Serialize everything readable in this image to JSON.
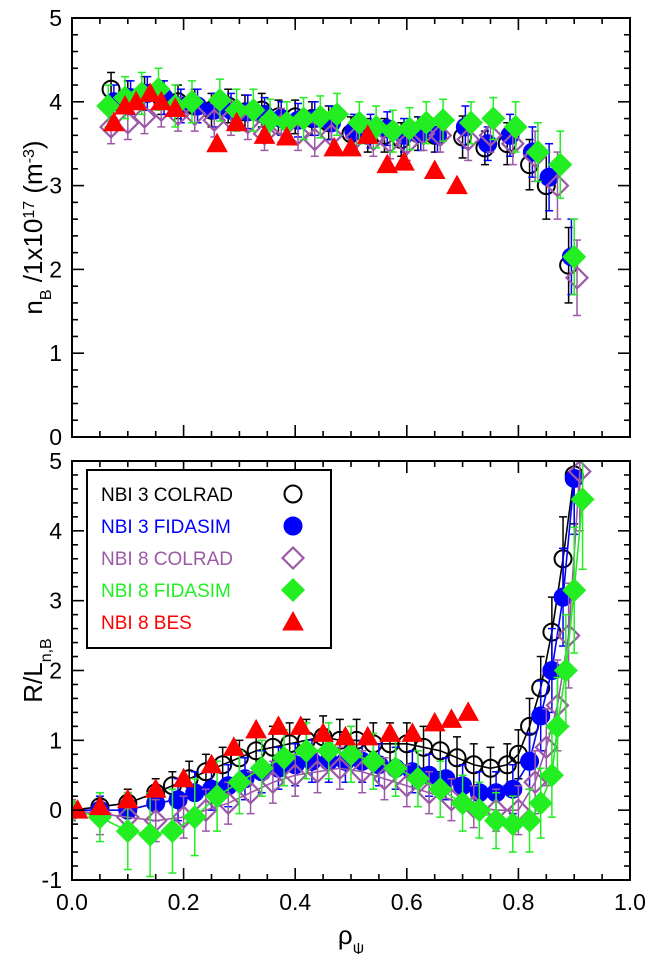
{
  "chart_data": [
    {
      "type": "scatter",
      "panel": "top",
      "ylabel": "n_B /1x10^17 (m^-3)",
      "xlim": [
        0.0,
        1.0
      ],
      "ylim": [
        0,
        5
      ],
      "yticks": [
        "0",
        "1",
        "2",
        "3",
        "4",
        "5"
      ],
      "series": [
        {
          "name": "NBI 3 COLRAD",
          "color": "#000000",
          "marker": "open-circle",
          "lines": false,
          "x": [
            0.07,
            0.1,
            0.13,
            0.16,
            0.19,
            0.22,
            0.25,
            0.28,
            0.31,
            0.34,
            0.37,
            0.4,
            0.43,
            0.46,
            0.5,
            0.53,
            0.56,
            0.59,
            0.62,
            0.65,
            0.7,
            0.74,
            0.78,
            0.82,
            0.85,
            0.89
          ],
          "y": [
            4.15,
            4.05,
            4.1,
            4.05,
            4.0,
            3.95,
            3.9,
            3.95,
            3.88,
            3.9,
            3.82,
            3.82,
            3.8,
            3.75,
            3.62,
            3.6,
            3.6,
            3.55,
            3.62,
            3.6,
            3.58,
            3.45,
            3.5,
            3.25,
            3.0,
            2.05
          ],
          "err": [
            0.2,
            0.2,
            0.2,
            0.2,
            0.2,
            0.2,
            0.2,
            0.2,
            0.2,
            0.2,
            0.2,
            0.2,
            0.2,
            0.2,
            0.2,
            0.2,
            0.2,
            0.2,
            0.2,
            0.2,
            0.25,
            0.2,
            0.25,
            0.3,
            0.4,
            0.45
          ]
        },
        {
          "name": "NBI 3 FIDASIM",
          "color": "#0000ff",
          "marker": "filled-circle",
          "lines": false,
          "x": [
            0.075,
            0.105,
            0.135,
            0.165,
            0.195,
            0.225,
            0.255,
            0.285,
            0.315,
            0.345,
            0.375,
            0.405,
            0.435,
            0.465,
            0.505,
            0.535,
            0.565,
            0.595,
            0.625,
            0.655,
            0.705,
            0.745,
            0.785,
            0.825,
            0.855,
            0.895
          ],
          "y": [
            4.0,
            4.05,
            4.1,
            4.05,
            3.95,
            3.95,
            3.9,
            3.9,
            3.88,
            3.85,
            3.8,
            3.78,
            3.8,
            3.75,
            3.65,
            3.65,
            3.68,
            3.6,
            3.62,
            3.6,
            3.7,
            3.5,
            3.6,
            3.4,
            3.1,
            2.15
          ],
          "err": [
            0.2,
            0.2,
            0.2,
            0.2,
            0.2,
            0.2,
            0.2,
            0.2,
            0.2,
            0.2,
            0.2,
            0.2,
            0.2,
            0.2,
            0.2,
            0.2,
            0.2,
            0.2,
            0.2,
            0.2,
            0.25,
            0.2,
            0.25,
            0.3,
            0.4,
            0.45
          ]
        },
        {
          "name": "NBI 8 COLRAD",
          "color": "#9b59a6",
          "marker": "open-diamond",
          "lines": false,
          "x": [
            0.07,
            0.1,
            0.13,
            0.16,
            0.19,
            0.22,
            0.255,
            0.285,
            0.315,
            0.345,
            0.375,
            0.405,
            0.435,
            0.465,
            0.51,
            0.54,
            0.57,
            0.6,
            0.63,
            0.66,
            0.71,
            0.75,
            0.79,
            0.83,
            0.87,
            0.905
          ],
          "y": [
            3.7,
            3.75,
            3.82,
            3.9,
            3.85,
            3.85,
            3.78,
            3.8,
            3.75,
            3.62,
            3.72,
            3.62,
            3.55,
            3.6,
            3.58,
            3.55,
            3.52,
            3.5,
            3.62,
            3.6,
            3.55,
            3.6,
            3.5,
            3.35,
            3.0,
            1.9
          ],
          "err": [
            0.2,
            0.2,
            0.2,
            0.2,
            0.2,
            0.2,
            0.2,
            0.2,
            0.2,
            0.2,
            0.2,
            0.2,
            0.2,
            0.2,
            0.2,
            0.2,
            0.2,
            0.2,
            0.2,
            0.2,
            0.25,
            0.2,
            0.25,
            0.3,
            0.4,
            0.45
          ]
        },
        {
          "name": "NBI 8 FIDASIM",
          "color": "#22ee22",
          "marker": "filled-diamond",
          "lines": false,
          "x": [
            0.065,
            0.095,
            0.125,
            0.155,
            0.185,
            0.215,
            0.265,
            0.295,
            0.325,
            0.355,
            0.385,
            0.415,
            0.445,
            0.475,
            0.515,
            0.545,
            0.575,
            0.605,
            0.635,
            0.665,
            0.715,
            0.755,
            0.795,
            0.835,
            0.875,
            0.9
          ],
          "y": [
            3.95,
            4.05,
            4.1,
            4.15,
            3.95,
            4.0,
            4.02,
            3.9,
            3.9,
            3.78,
            3.75,
            3.8,
            3.82,
            3.85,
            3.75,
            3.7,
            3.65,
            3.68,
            3.75,
            3.78,
            3.75,
            3.8,
            3.7,
            3.4,
            3.25,
            2.15
          ],
          "err": [
            0.25,
            0.25,
            0.25,
            0.25,
            0.25,
            0.25,
            0.25,
            0.25,
            0.25,
            0.25,
            0.25,
            0.25,
            0.25,
            0.25,
            0.25,
            0.25,
            0.25,
            0.25,
            0.25,
            0.25,
            0.25,
            0.25,
            0.3,
            0.35,
            0.4,
            0.45
          ]
        },
        {
          "name": "NBI 8 BES",
          "color": "#ff0000",
          "marker": "filled-triangle",
          "lines": false,
          "x": [
            0.075,
            0.095,
            0.115,
            0.14,
            0.16,
            0.185,
            0.26,
            0.295,
            0.345,
            0.385,
            0.47,
            0.5,
            0.53,
            0.565,
            0.595,
            0.65,
            0.69
          ],
          "y": [
            3.75,
            3.95,
            4.0,
            4.1,
            4.0,
            3.92,
            3.5,
            3.75,
            3.6,
            3.58,
            3.45,
            3.45,
            3.6,
            3.25,
            3.28,
            3.18,
            3.0
          ],
          "err": []
        }
      ]
    },
    {
      "type": "line",
      "panel": "bottom",
      "xlabel": "ρ_ψ",
      "ylabel": "R/L_n,B",
      "xlim": [
        0.0,
        1.0
      ],
      "ylim": [
        -1,
        5
      ],
      "xticks": [
        "0.0",
        "0.2",
        "0.4",
        "0.6",
        "0.8",
        "1.0"
      ],
      "yticks": [
        "-1",
        "0",
        "1",
        "2",
        "3",
        "4",
        "5"
      ],
      "legend": "top-left",
      "series": [
        {
          "name": "NBI 3 COLRAD",
          "color": "#000000",
          "marker": "open-circle",
          "lines": true,
          "x": [
            0.0,
            0.05,
            0.1,
            0.15,
            0.18,
            0.21,
            0.24,
            0.27,
            0.3,
            0.33,
            0.36,
            0.39,
            0.42,
            0.45,
            0.48,
            0.51,
            0.54,
            0.57,
            0.6,
            0.63,
            0.66,
            0.69,
            0.72,
            0.75,
            0.78,
            0.8,
            0.82,
            0.84,
            0.86,
            0.88,
            0.9
          ],
          "y": [
            0.0,
            0.05,
            0.1,
            0.25,
            0.35,
            0.45,
            0.55,
            0.65,
            0.75,
            0.85,
            0.9,
            0.95,
            1.0,
            1.05,
            1.0,
            1.0,
            0.95,
            0.95,
            0.95,
            0.9,
            0.85,
            0.75,
            0.65,
            0.6,
            0.65,
            0.8,
            1.2,
            1.75,
            2.55,
            3.6,
            4.8
          ],
          "err": [
            0.1,
            0.1,
            0.2,
            0.2,
            0.2,
            0.25,
            0.25,
            0.25,
            0.25,
            0.3,
            0.3,
            0.3,
            0.3,
            0.3,
            0.3,
            0.3,
            0.3,
            0.3,
            0.3,
            0.3,
            0.3,
            0.3,
            0.3,
            0.3,
            0.3,
            0.35,
            0.4,
            0.45,
            0.5,
            0.6,
            0.7
          ]
        },
        {
          "name": "NBI 3 FIDASIM",
          "color": "#0000ff",
          "marker": "filled-circle",
          "lines": true,
          "x": [
            0.0,
            0.05,
            0.1,
            0.15,
            0.19,
            0.22,
            0.25,
            0.28,
            0.31,
            0.34,
            0.37,
            0.4,
            0.43,
            0.46,
            0.49,
            0.52,
            0.55,
            0.58,
            0.61,
            0.64,
            0.67,
            0.7,
            0.73,
            0.76,
            0.79,
            0.82,
            0.84,
            0.86,
            0.88,
            0.9
          ],
          "y": [
            0.0,
            0.0,
            0.0,
            0.1,
            0.15,
            0.25,
            0.3,
            0.35,
            0.45,
            0.55,
            0.6,
            0.65,
            0.7,
            0.7,
            0.7,
            0.7,
            0.65,
            0.6,
            0.55,
            0.5,
            0.45,
            0.35,
            0.25,
            0.25,
            0.3,
            0.7,
            1.35,
            2.0,
            3.05,
            4.75
          ],
          "err": [
            0.15,
            0.2,
            0.25,
            0.25,
            0.3,
            0.3,
            0.3,
            0.3,
            0.3,
            0.3,
            0.3,
            0.3,
            0.3,
            0.3,
            0.3,
            0.3,
            0.3,
            0.3,
            0.3,
            0.3,
            0.3,
            0.3,
            0.3,
            0.3,
            0.35,
            0.4,
            0.5,
            0.6,
            0.7,
            0.8
          ]
        },
        {
          "name": "NBI 8 COLRAD",
          "color": "#9b59a6",
          "marker": "open-diamond",
          "lines": true,
          "x": [
            0.0,
            0.05,
            0.1,
            0.15,
            0.2,
            0.24,
            0.28,
            0.32,
            0.36,
            0.4,
            0.44,
            0.48,
            0.52,
            0.56,
            0.6,
            0.64,
            0.68,
            0.72,
            0.76,
            0.8,
            0.83,
            0.85,
            0.87,
            0.89,
            0.91
          ],
          "y": [
            0.0,
            -0.05,
            -0.1,
            -0.15,
            -0.1,
            0.0,
            0.1,
            0.25,
            0.4,
            0.5,
            0.55,
            0.6,
            0.55,
            0.45,
            0.35,
            0.25,
            0.15,
            0.05,
            0.0,
            0.0,
            0.4,
            0.9,
            1.5,
            2.5,
            4.85
          ],
          "err": [
            0.15,
            0.3,
            0.3,
            0.3,
            0.3,
            0.3,
            0.3,
            0.3,
            0.3,
            0.3,
            0.3,
            0.3,
            0.3,
            0.3,
            0.3,
            0.3,
            0.3,
            0.3,
            0.3,
            0.35,
            0.45,
            0.55,
            0.65,
            0.75,
            0.85
          ]
        },
        {
          "name": "NBI 8 FIDASIM",
          "color": "#22ee22",
          "marker": "filled-diamond",
          "lines": true,
          "x": [
            0.0,
            0.05,
            0.1,
            0.14,
            0.18,
            0.22,
            0.26,
            0.3,
            0.34,
            0.38,
            0.42,
            0.46,
            0.5,
            0.54,
            0.58,
            0.62,
            0.66,
            0.7,
            0.73,
            0.76,
            0.79,
            0.82,
            0.84,
            0.86,
            0.87,
            0.885,
            0.9,
            0.915
          ],
          "y": [
            0.0,
            -0.1,
            -0.3,
            -0.35,
            -0.3,
            -0.1,
            0.2,
            0.4,
            0.6,
            0.75,
            0.85,
            0.85,
            0.8,
            0.7,
            0.6,
            0.45,
            0.3,
            0.1,
            0.0,
            -0.15,
            -0.2,
            -0.15,
            0.1,
            0.5,
            1.2,
            2.0,
            3.15,
            4.45
          ],
          "err": [
            0.2,
            0.35,
            0.55,
            0.6,
            0.6,
            0.55,
            0.5,
            0.45,
            0.4,
            0.4,
            0.4,
            0.4,
            0.4,
            0.4,
            0.4,
            0.4,
            0.4,
            0.4,
            0.4,
            0.4,
            0.4,
            0.45,
            0.5,
            0.6,
            0.7,
            0.8,
            0.9,
            1.0
          ]
        },
        {
          "name": "NBI 8 BES",
          "color": "#ff0000",
          "marker": "filled-triangle",
          "lines": false,
          "x": [
            0.01,
            0.05,
            0.1,
            0.15,
            0.2,
            0.25,
            0.29,
            0.33,
            0.37,
            0.41,
            0.45,
            0.49,
            0.53,
            0.57,
            0.61,
            0.65,
            0.68,
            0.71
          ],
          "y": [
            0.0,
            0.05,
            0.15,
            0.3,
            0.45,
            0.65,
            0.9,
            1.15,
            1.2,
            1.2,
            1.1,
            1.05,
            1.05,
            1.1,
            1.1,
            1.25,
            1.3,
            1.4
          ],
          "err": []
        }
      ]
    }
  ]
}
